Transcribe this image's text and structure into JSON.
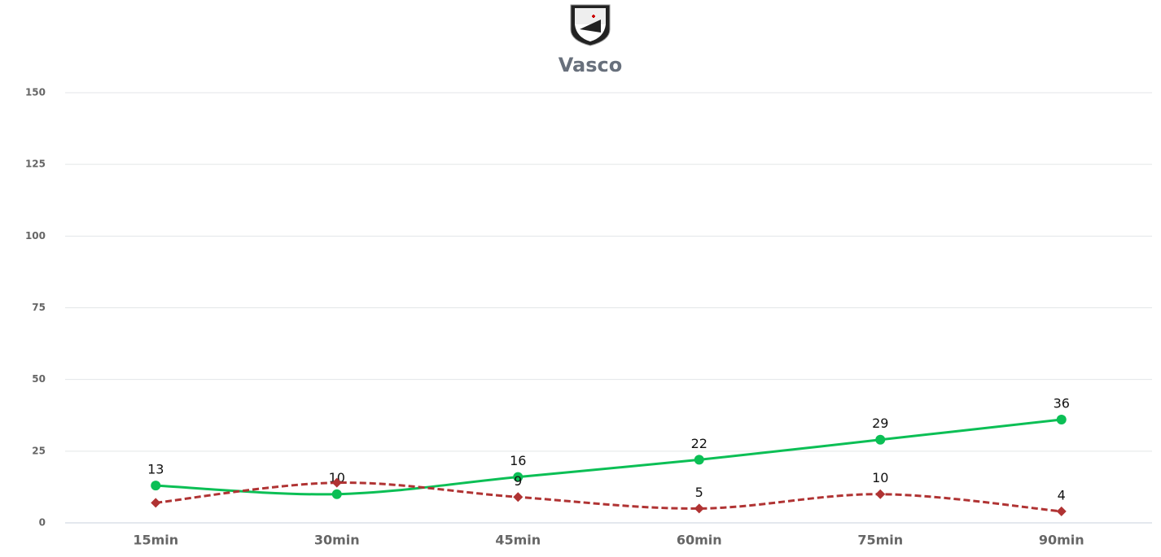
{
  "chart_data": {
    "type": "line",
    "title": "Vasco",
    "categories": [
      "15min",
      "30min",
      "45min",
      "60min",
      "75min",
      "90min"
    ],
    "series": [
      {
        "color": "#0bbf55",
        "marker": "circle",
        "dashed": false,
        "values": [
          13,
          10,
          16,
          22,
          29,
          36
        ]
      },
      {
        "color": "#b03333",
        "marker": "diamond",
        "dashed": true,
        "values": [
          7,
          14,
          9,
          5,
          10,
          4
        ],
        "value_labels": [
          null,
          null,
          "9",
          "5",
          "10",
          "4"
        ]
      }
    ],
    "ylim": [
      0,
      150
    ],
    "yticks": [
      0,
      25,
      50,
      75,
      100,
      125,
      150
    ],
    "grid": true
  }
}
